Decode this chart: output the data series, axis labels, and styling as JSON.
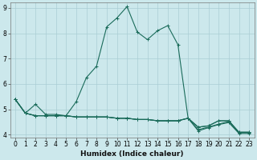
{
  "xlabel": "Humidex (Indice chaleur)",
  "bg_color": "#cce8ec",
  "grid_color": "#aacdd4",
  "line_color": "#1a6b5a",
  "xlim": [
    -0.5,
    23.5
  ],
  "ylim": [
    3.9,
    9.2
  ],
  "x_ticks": [
    0,
    1,
    2,
    3,
    4,
    5,
    6,
    7,
    8,
    9,
    10,
    11,
    12,
    13,
    14,
    15,
    16,
    17,
    18,
    19,
    20,
    21,
    22,
    23
  ],
  "y_ticks": [
    4,
    5,
    6,
    7,
    8,
    9
  ],
  "series1": [
    5.4,
    4.85,
    5.2,
    4.8,
    4.8,
    4.75,
    5.3,
    6.25,
    6.7,
    8.25,
    8.6,
    9.05,
    8.05,
    7.75,
    8.1,
    8.3,
    7.55,
    4.65,
    4.3,
    4.35,
    4.55,
    4.55,
    4.1,
    4.1
  ],
  "series2": [
    5.4,
    4.85,
    4.75,
    4.75,
    4.75,
    4.75,
    4.7,
    4.7,
    4.7,
    4.7,
    4.65,
    4.65,
    4.6,
    4.6,
    4.55,
    4.55,
    4.55,
    4.65,
    4.3,
    4.35,
    4.55,
    4.55,
    4.1,
    4.1
  ],
  "series3": [
    5.4,
    4.85,
    4.75,
    4.75,
    4.75,
    4.75,
    4.7,
    4.7,
    4.7,
    4.7,
    4.65,
    4.65,
    4.6,
    4.6,
    4.55,
    4.55,
    4.55,
    4.65,
    4.15,
    4.28,
    4.4,
    4.48,
    4.05,
    4.05
  ],
  "series4": [
    5.4,
    4.85,
    4.75,
    4.75,
    4.75,
    4.75,
    4.7,
    4.7,
    4.7,
    4.7,
    4.65,
    4.65,
    4.6,
    4.6,
    4.55,
    4.55,
    4.55,
    4.65,
    4.2,
    4.3,
    4.42,
    4.52,
    4.08,
    4.08
  ]
}
